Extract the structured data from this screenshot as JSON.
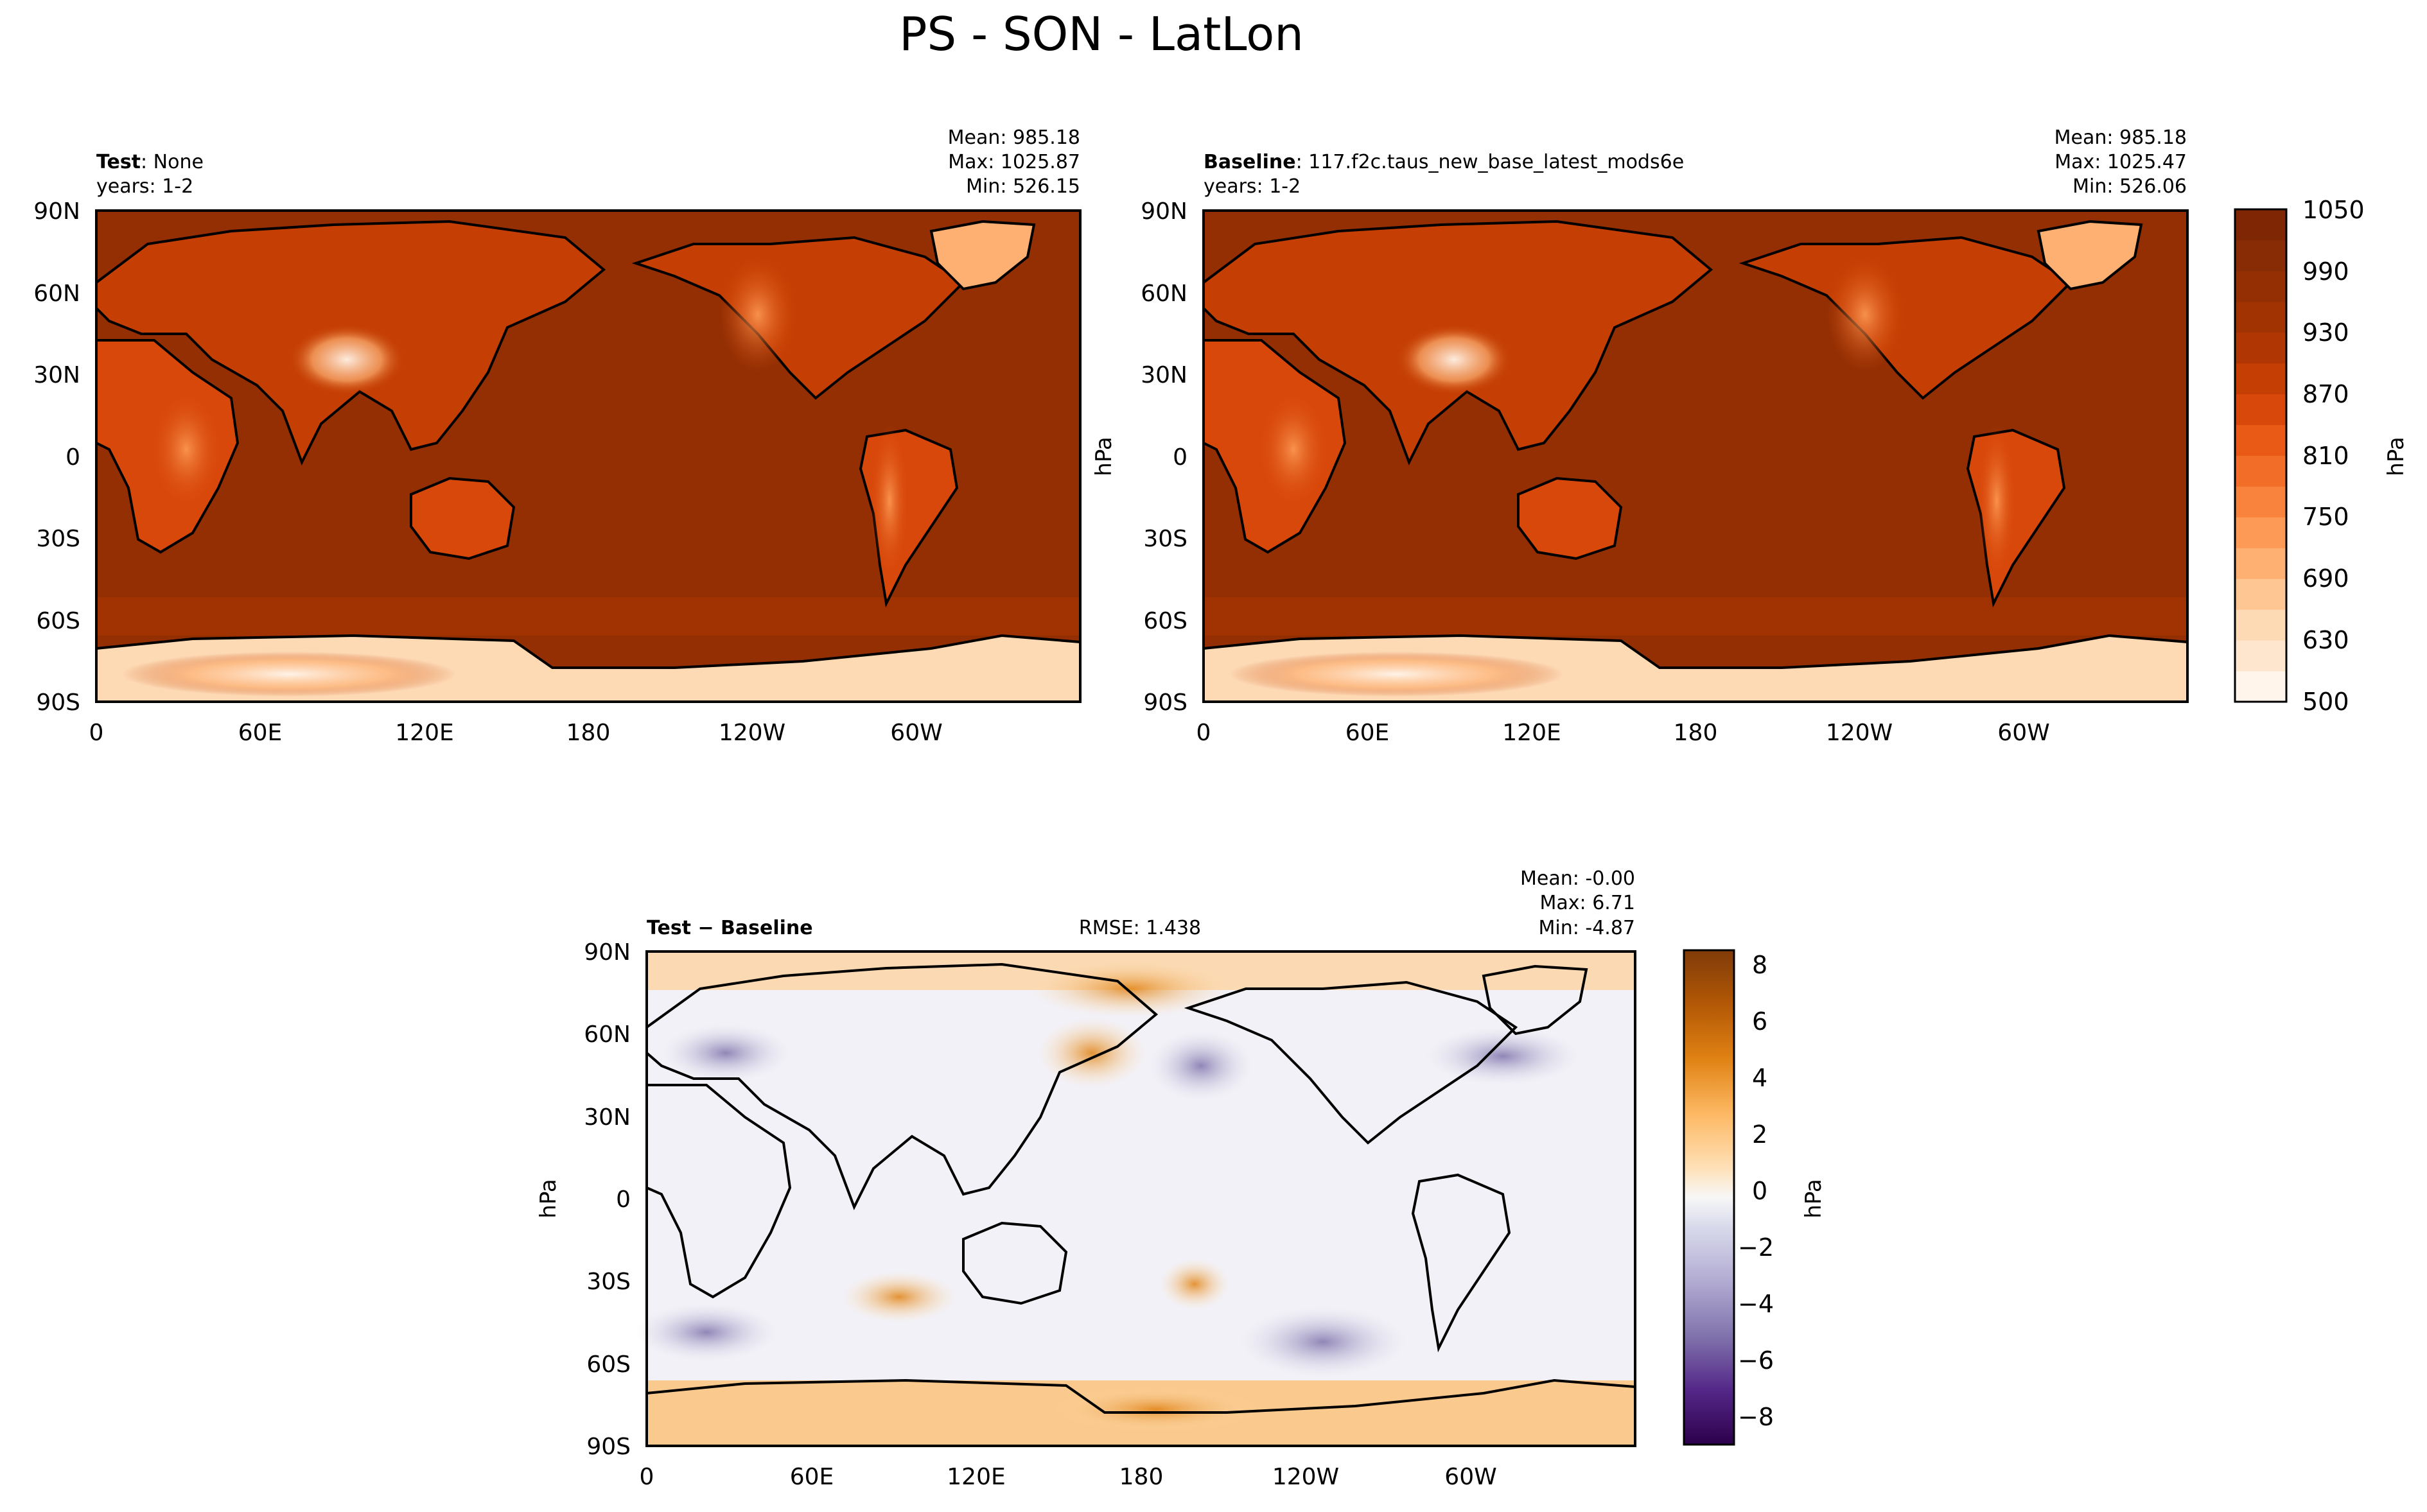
{
  "figure": {
    "title": "PS - SON - LatLon"
  },
  "panels": {
    "test": {
      "label_bold": "Test",
      "label_rest": ": None",
      "years": "years: 1-2",
      "mean": "Mean: 985.18",
      "max": "Max: 1025.87",
      "min": "Min: 526.15"
    },
    "baseline": {
      "label_bold": "Baseline",
      "label_rest": ": 117.f2c.taus_new_base_latest_mods6e",
      "years": "years: 1-2",
      "mean": "Mean: 985.18",
      "max": "Max: 1025.47",
      "min": "Min: 526.06",
      "ylabel": "hPa"
    },
    "diff": {
      "label": "Test − Baseline",
      "rmse": "RMSE: 1.438",
      "mean": "Mean: -0.00",
      "max": "Max:  6.71",
      "min": "Min: -4.87",
      "ylabel": "hPa"
    }
  },
  "colorbars": {
    "main": {
      "label": "hPa",
      "ticks": [
        "1050",
        "990",
        "930",
        "870",
        "810",
        "750",
        "690",
        "630",
        "500"
      ],
      "colormap": "Oranges",
      "levels": [
        500,
        600,
        630,
        660,
        690,
        720,
        750,
        780,
        810,
        840,
        870,
        900,
        930,
        960,
        990,
        1020,
        1050
      ],
      "colors": [
        "#fff5eb",
        "#fee6ce",
        "#fdd9b4",
        "#fdc692",
        "#fdb072",
        "#fd9a55",
        "#f9833c",
        "#f26d28",
        "#e85a16",
        "#d8480a",
        "#c53f04",
        "#b03703",
        "#a13303",
        "#932f03",
        "#872c04",
        "#7f2704"
      ]
    },
    "diff": {
      "label": "hPa",
      "ticks": [
        "8",
        "6",
        "4",
        "2",
        "0",
        "−2",
        "−4",
        "−6",
        "−8"
      ],
      "colormap": "PuOr",
      "range": [
        -9,
        9
      ]
    }
  },
  "axes": {
    "lat_ticks": [
      "90N",
      "60N",
      "30N",
      "0",
      "30S",
      "60S",
      "90S"
    ],
    "lon_ticks": [
      "0",
      "60E",
      "120E",
      "180",
      "120W",
      "60W"
    ]
  },
  "chart_data": [
    {
      "type": "heatmap",
      "panel": "test",
      "variable": "PS",
      "season": "SON",
      "units": "hPa",
      "x_ticks": [
        "0",
        "60E",
        "120E",
        "180",
        "120W",
        "60W"
      ],
      "y_ticks": [
        "90N",
        "60N",
        "30N",
        "0",
        "30S",
        "60S",
        "90S"
      ],
      "xlim": [
        0,
        360
      ],
      "ylim": [
        -90,
        90
      ],
      "stats": {
        "mean": 985.18,
        "max": 1025.87,
        "min": 526.15
      },
      "clim": [
        500,
        1050
      ]
    },
    {
      "type": "heatmap",
      "panel": "baseline",
      "variable": "PS",
      "season": "SON",
      "units": "hPa",
      "x_ticks": [
        "0",
        "60E",
        "120E",
        "180",
        "120W",
        "60W"
      ],
      "y_ticks": [
        "90N",
        "60N",
        "30N",
        "0",
        "30S",
        "60S",
        "90S"
      ],
      "xlim": [
        0,
        360
      ],
      "ylim": [
        -90,
        90
      ],
      "stats": {
        "mean": 985.18,
        "max": 1025.47,
        "min": 526.06
      },
      "clim": [
        500,
        1050
      ]
    },
    {
      "type": "heatmap",
      "panel": "diff",
      "variable": "PS",
      "season": "SON",
      "units": "hPa",
      "x_ticks": [
        "0",
        "60E",
        "120E",
        "180",
        "120W",
        "60W"
      ],
      "y_ticks": [
        "90N",
        "60N",
        "30N",
        "0",
        "30S",
        "60S",
        "90S"
      ],
      "xlim": [
        0,
        360
      ],
      "ylim": [
        -90,
        90
      ],
      "stats": {
        "mean": -0.0,
        "max": 6.71,
        "min": -4.87,
        "rmse": 1.438
      },
      "clim": [
        -9,
        9
      ]
    }
  ]
}
